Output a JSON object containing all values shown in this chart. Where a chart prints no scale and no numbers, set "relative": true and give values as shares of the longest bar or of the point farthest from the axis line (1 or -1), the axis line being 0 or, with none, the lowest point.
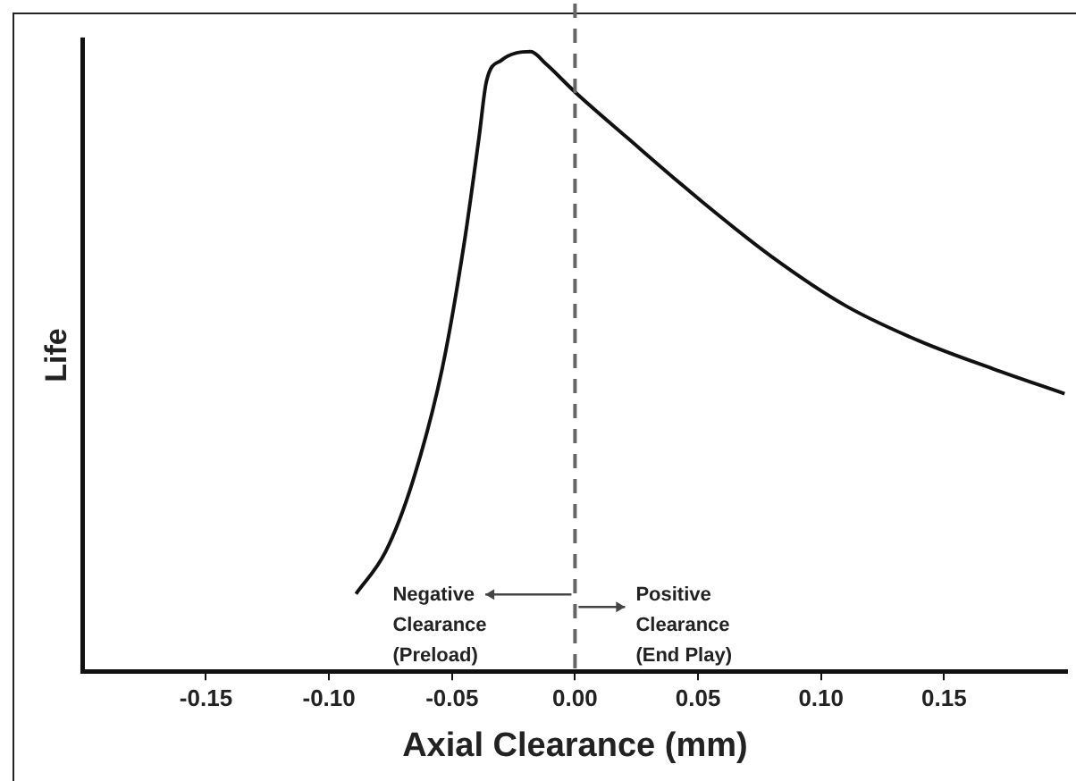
{
  "chart_data": {
    "type": "line",
    "relative": true,
    "xlabel": "Axial Clearance (mm)",
    "ylabel": "Life",
    "x": [
      -0.089,
      -0.077,
      -0.066,
      -0.054,
      -0.045,
      -0.039,
      -0.036,
      -0.03,
      -0.018,
      -0.012,
      0,
      0.021,
      0.051,
      0.08,
      0.11,
      0.14,
      0.17,
      0.199
    ],
    "series": [
      {
        "color": "#111111",
        "values": [
          0.125,
          0.193,
          0.306,
          0.488,
          0.692,
          0.862,
          0.952,
          0.986,
          1,
          0.981,
          0.935,
          0.862,
          0.76,
          0.669,
          0.59,
          0.533,
          0.488,
          0.448
        ]
      }
    ],
    "xlim": [
      -0.2,
      0.2
    ],
    "xticks": [
      -0.15,
      {
        "value": -0.1,
        "label": "-0.10"
      },
      -0.05,
      {
        "value": 0,
        "label": "0.00"
      },
      0.05,
      {
        "value": 0.1,
        "label": "0.10"
      },
      0.15
    ],
    "ref_lines": [
      {
        "axis": "x",
        "value": 0,
        "label": null,
        "color": "#666666",
        "line_style": "dashed"
      }
    ],
    "annotations": [
      "Negative\nClearance\n(Preload)",
      "Positive\nClearance\n(End Play)"
    ],
    "grid": false,
    "legend": false,
    "marker": "none",
    "line_style": "solid"
  }
}
